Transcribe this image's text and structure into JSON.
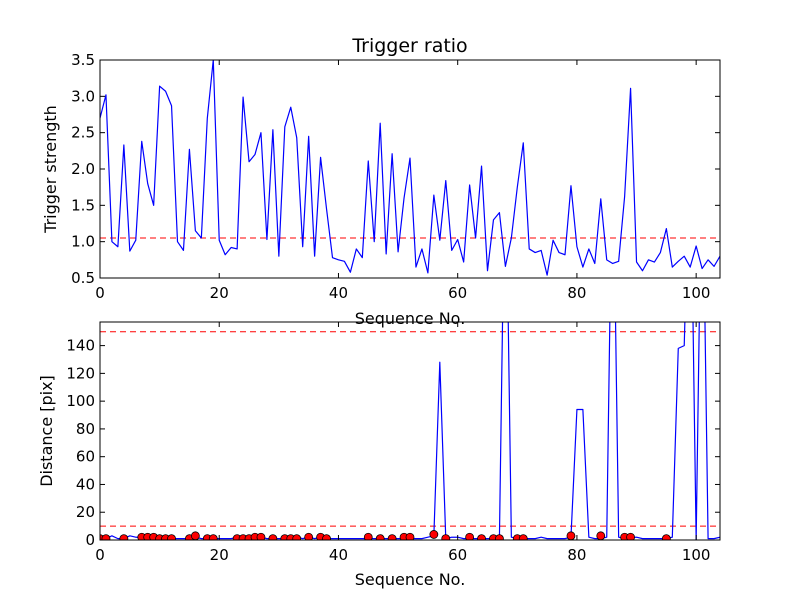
{
  "chart_data": [
    {
      "type": "line",
      "title": "Trigger ratio",
      "xlabel": "Sequence No.",
      "ylabel": "Trigger strength",
      "xlim": [
        0,
        104
      ],
      "ylim": [
        0.5,
        3.5
      ],
      "xticks": [
        0,
        20,
        40,
        60,
        80,
        100
      ],
      "xtick_labels": [
        "0",
        "20",
        "40",
        "60",
        "80",
        "100"
      ],
      "yticks": [
        0.5,
        1.0,
        1.5,
        2.0,
        2.5,
        3.0,
        3.5
      ],
      "ytick_labels": [
        "0.5",
        "1.0",
        "1.5",
        "2.0",
        "2.5",
        "3.0",
        "3.5"
      ],
      "grid": false,
      "threshold": {
        "y": 1.05,
        "color": "#ff0000",
        "style": "dashed"
      },
      "series": [
        {
          "color": "#0000ff",
          "x": [
            0,
            1,
            2,
            3,
            4,
            5,
            6,
            7,
            8,
            9,
            10,
            11,
            12,
            13,
            14,
            15,
            16,
            17,
            18,
            19,
            20,
            21,
            22,
            23,
            24,
            25,
            26,
            27,
            28,
            29,
            30,
            31,
            32,
            33,
            34,
            35,
            36,
            37,
            38,
            39,
            40,
            41,
            42,
            43,
            44,
            45,
            46,
            47,
            48,
            49,
            50,
            51,
            52,
            53,
            54,
            55,
            56,
            57,
            58,
            59,
            60,
            61,
            62,
            63,
            64,
            65,
            66,
            67,
            68,
            69,
            70,
            71,
            72,
            73,
            74,
            75,
            76,
            77,
            78,
            79,
            80,
            81,
            82,
            83,
            84,
            85,
            86,
            87,
            88,
            89,
            90,
            91,
            92,
            93,
            94,
            95,
            96,
            97,
            98,
            99,
            100,
            101,
            102,
            103,
            104
          ],
          "y": [
            2.7,
            3.02,
            1.0,
            0.93,
            2.33,
            0.87,
            1.02,
            2.38,
            1.8,
            1.5,
            3.14,
            3.07,
            2.87,
            1.0,
            0.88,
            2.27,
            1.15,
            1.05,
            2.7,
            3.5,
            1.02,
            0.82,
            0.92,
            0.9,
            2.99,
            2.1,
            2.2,
            2.5,
            1.03,
            2.54,
            0.8,
            2.58,
            2.85,
            2.43,
            0.93,
            2.45,
            0.8,
            2.16,
            1.45,
            0.78,
            0.75,
            0.73,
            0.58,
            0.9,
            0.78,
            2.11,
            1.0,
            2.63,
            0.83,
            2.21,
            0.86,
            1.6,
            2.15,
            0.65,
            0.9,
            0.57,
            1.64,
            1.02,
            1.84,
            0.88,
            1.03,
            0.72,
            1.78,
            1.05,
            2.04,
            0.6,
            1.3,
            1.4,
            0.66,
            1.05,
            1.75,
            2.36,
            0.9,
            0.85,
            0.88,
            0.54,
            1.02,
            0.85,
            0.82,
            1.77,
            0.93,
            0.65,
            0.9,
            0.7,
            1.59,
            0.75,
            0.7,
            0.73,
            1.62,
            3.11,
            0.72,
            0.6,
            0.75,
            0.72,
            0.85,
            1.18,
            0.65,
            0.73,
            0.8,
            0.65,
            0.94,
            0.63,
            0.75,
            0.66,
            0.8
          ]
        }
      ]
    },
    {
      "type": "line",
      "xlabel": "Sequence No.",
      "ylabel": "Distance [pix]",
      "xlim": [
        0,
        104
      ],
      "ylim": [
        0,
        157
      ],
      "xticks": [
        0,
        20,
        40,
        60,
        80,
        100
      ],
      "xtick_labels": [
        "0",
        "20",
        "40",
        "60",
        "80",
        "100"
      ],
      "yticks": [
        0,
        20,
        40,
        60,
        80,
        100,
        120,
        140
      ],
      "ytick_labels": [
        "0",
        "20",
        "40",
        "60",
        "80",
        "100",
        "120",
        "140"
      ],
      "grid": false,
      "thresholds": [
        {
          "y": 150,
          "color": "#ff0000",
          "style": "dashed"
        },
        {
          "y": 10,
          "color": "#ff0000",
          "style": "dashed"
        }
      ],
      "series": [
        {
          "color": "#0000ff",
          "x": [
            0,
            1,
            2,
            3,
            4,
            5,
            6,
            7,
            8,
            9,
            10,
            11,
            12,
            13,
            14,
            15,
            16,
            17,
            18,
            19,
            20,
            21,
            22,
            23,
            24,
            25,
            26,
            27,
            28,
            29,
            30,
            31,
            32,
            33,
            34,
            35,
            36,
            37,
            38,
            39,
            40,
            41,
            42,
            43,
            44,
            45,
            46,
            47,
            48,
            49,
            50,
            51,
            52,
            53,
            54,
            55,
            56,
            57,
            58,
            59,
            60,
            61,
            62,
            63,
            64,
            65,
            66,
            67,
            68,
            69,
            70,
            71,
            72,
            73,
            74,
            75,
            76,
            77,
            78,
            79,
            80,
            81,
            82,
            83,
            84,
            85,
            86,
            87,
            88,
            89,
            90,
            91,
            92,
            93,
            94,
            95,
            96,
            97,
            98,
            99,
            100,
            101,
            102,
            103,
            104
          ],
          "y": [
            1,
            1,
            3,
            1,
            1,
            3,
            2,
            2,
            2,
            2,
            1,
            1,
            1,
            1,
            1,
            1,
            2,
            1,
            1,
            1,
            1,
            1,
            1,
            2,
            1,
            1,
            1,
            2,
            1,
            1,
            1,
            1,
            1,
            2,
            1,
            2,
            1,
            2,
            1,
            1,
            1,
            1,
            1,
            1,
            1,
            1,
            1,
            1,
            1,
            1,
            1,
            1,
            1,
            1,
            1,
            2,
            3,
            128,
            1,
            2,
            2,
            1,
            1,
            1,
            1,
            1,
            1,
            1,
            300,
            2,
            1,
            1,
            1,
            1,
            2,
            1,
            1,
            1,
            1,
            2,
            94,
            94,
            2,
            1,
            1,
            2,
            300,
            2,
            1,
            2,
            2,
            1,
            1,
            1,
            1,
            1,
            2,
            138,
            140,
            300,
            0,
            300,
            1,
            1,
            2
          ]
        },
        {
          "type": "scatter",
          "marker": "circle",
          "color": "#ff0000",
          "x": [
            0,
            1,
            4,
            7,
            8,
            9,
            10,
            11,
            12,
            15,
            16,
            18,
            19,
            23,
            24,
            25,
            26,
            27,
            29,
            31,
            32,
            33,
            35,
            37,
            38,
            45,
            47,
            49,
            51,
            52,
            56,
            58,
            62,
            64,
            66,
            67,
            70,
            71,
            79,
            84,
            88,
            89,
            95
          ],
          "y": [
            1,
            1,
            1,
            2,
            2,
            2,
            1,
            1,
            1,
            1,
            3,
            1,
            1,
            1,
            1,
            1,
            2,
            2,
            1,
            1,
            1,
            1,
            2,
            2,
            1,
            2,
            1,
            1,
            2,
            2,
            4,
            1,
            2,
            1,
            1,
            1,
            1,
            1,
            3,
            3,
            2,
            2,
            1
          ]
        }
      ]
    }
  ]
}
